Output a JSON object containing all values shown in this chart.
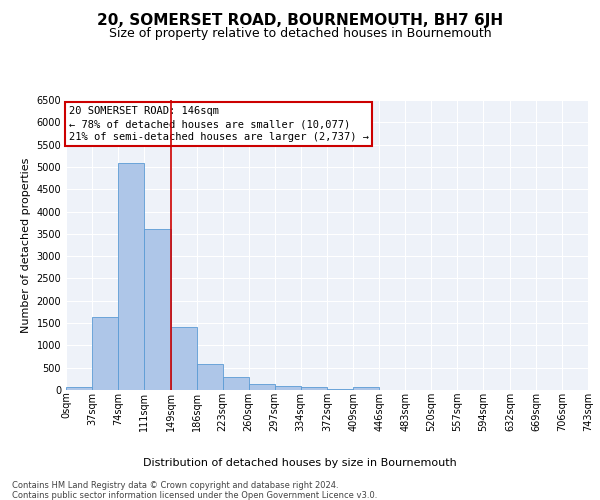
{
  "title": "20, SOMERSET ROAD, BOURNEMOUTH, BH7 6JH",
  "subtitle": "Size of property relative to detached houses in Bournemouth",
  "xlabel": "Distribution of detached houses by size in Bournemouth",
  "ylabel": "Number of detached properties",
  "footer_line1": "Contains HM Land Registry data © Crown copyright and database right 2024.",
  "footer_line2": "Contains public sector information licensed under the Open Government Licence v3.0.",
  "annotation_title": "20 SOMERSET ROAD: 146sqm",
  "annotation_line1": "← 78% of detached houses are smaller (10,077)",
  "annotation_line2": "21% of semi-detached houses are larger (2,737) →",
  "property_sqm": 146,
  "bin_edges": [
    0,
    37,
    74,
    111,
    149,
    186,
    223,
    260,
    297,
    334,
    372,
    409,
    446,
    483,
    520,
    557,
    594,
    632,
    669,
    706,
    743
  ],
  "bin_counts": [
    70,
    1630,
    5080,
    3600,
    1410,
    580,
    290,
    140,
    90,
    60,
    30,
    60,
    0,
    0,
    0,
    0,
    0,
    0,
    0,
    0
  ],
  "bar_color": "#aec6e8",
  "bar_edge_color": "#5b9bd5",
  "vline_color": "#cc0000",
  "vline_x": 149,
  "annotation_box_color": "#cc0000",
  "background_color": "#eef2f9",
  "ylim": [
    0,
    6500
  ],
  "yticks": [
    0,
    500,
    1000,
    1500,
    2000,
    2500,
    3000,
    3500,
    4000,
    4500,
    5000,
    5500,
    6000,
    6500
  ],
  "title_fontsize": 11,
  "subtitle_fontsize": 9,
  "ylabel_fontsize": 8,
  "xlabel_fontsize": 8,
  "tick_fontsize": 7,
  "footer_fontsize": 6,
  "annotation_fontsize": 7.5
}
